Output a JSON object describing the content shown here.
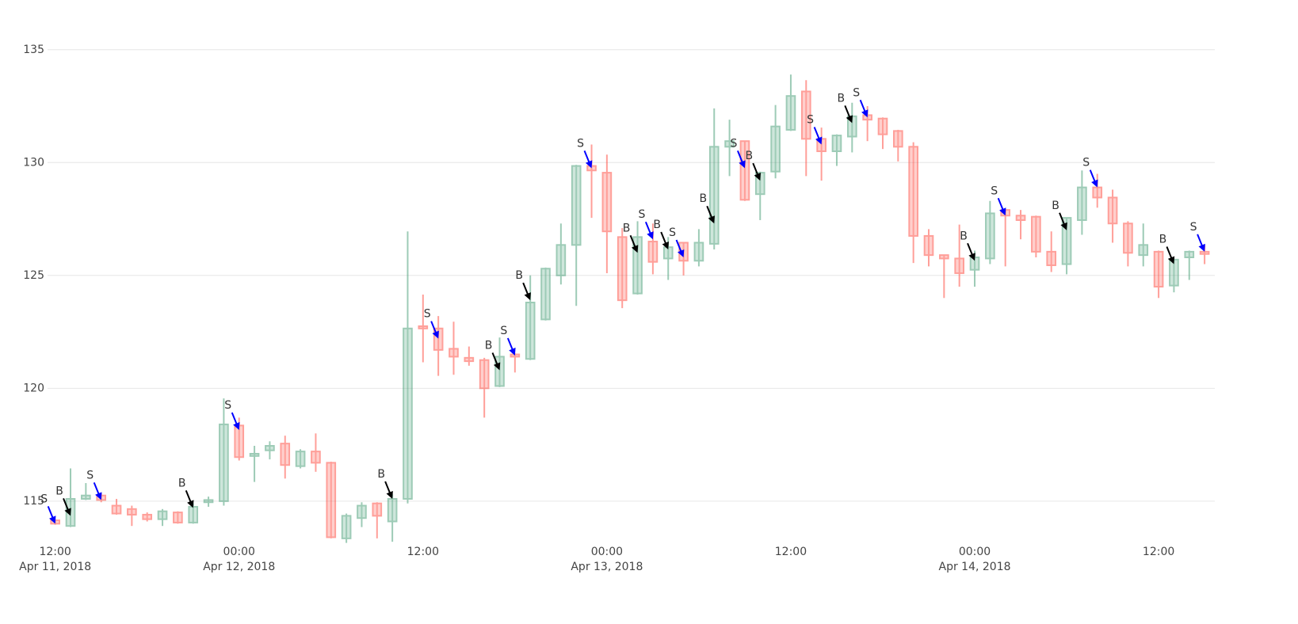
{
  "chart_data": {
    "type": "candlestick",
    "x": [
      "2018-04-11 12:00",
      "2018-04-11 13:00",
      "2018-04-11 14:00",
      "2018-04-11 15:00",
      "2018-04-11 16:00",
      "2018-04-11 17:00",
      "2018-04-11 18:00",
      "2018-04-11 19:00",
      "2018-04-11 20:00",
      "2018-04-11 21:00",
      "2018-04-11 22:00",
      "2018-04-11 23:00",
      "2018-04-12 00:00",
      "2018-04-12 01:00",
      "2018-04-12 02:00",
      "2018-04-12 03:00",
      "2018-04-12 04:00",
      "2018-04-12 05:00",
      "2018-04-12 06:00",
      "2018-04-12 07:00",
      "2018-04-12 08:00",
      "2018-04-12 09:00",
      "2018-04-12 10:00",
      "2018-04-12 11:00",
      "2018-04-12 12:00",
      "2018-04-12 13:00",
      "2018-04-12 14:00",
      "2018-04-12 15:00",
      "2018-04-12 16:00",
      "2018-04-12 17:00",
      "2018-04-12 18:00",
      "2018-04-12 19:00",
      "2018-04-12 20:00",
      "2018-04-12 21:00",
      "2018-04-12 22:00",
      "2018-04-12 23:00",
      "2018-04-13 00:00",
      "2018-04-13 01:00",
      "2018-04-13 02:00",
      "2018-04-13 03:00",
      "2018-04-13 04:00",
      "2018-04-13 05:00",
      "2018-04-13 06:00",
      "2018-04-13 07:00",
      "2018-04-13 08:00",
      "2018-04-13 09:00",
      "2018-04-13 10:00",
      "2018-04-13 11:00",
      "2018-04-13 12:00",
      "2018-04-13 13:00",
      "2018-04-13 14:00",
      "2018-04-13 15:00",
      "2018-04-13 16:00",
      "2018-04-13 17:00",
      "2018-04-13 18:00",
      "2018-04-13 19:00",
      "2018-04-13 20:00",
      "2018-04-13 21:00",
      "2018-04-13 22:00",
      "2018-04-13 23:00",
      "2018-04-14 00:00",
      "2018-04-14 01:00",
      "2018-04-14 02:00",
      "2018-04-14 03:00",
      "2018-04-14 04:00",
      "2018-04-14 05:00",
      "2018-04-14 06:00",
      "2018-04-14 07:00",
      "2018-04-14 08:00",
      "2018-04-14 09:00",
      "2018-04-14 10:00",
      "2018-04-14 11:00",
      "2018-04-14 12:00",
      "2018-04-14 13:00",
      "2018-04-14 14:00",
      "2018-04-14 15:00"
    ],
    "open": [
      114.15,
      113.9,
      115.1,
      115.25,
      114.8,
      114.65,
      114.4,
      114.2,
      114.5,
      114.05,
      114.95,
      115.0,
      118.35,
      117.0,
      117.25,
      117.55,
      116.55,
      117.2,
      116.7,
      113.35,
      114.25,
      114.9,
      114.1,
      115.1,
      122.75,
      122.65,
      121.75,
      121.35,
      121.25,
      120.1,
      121.5,
      121.3,
      123.05,
      125.0,
      126.35,
      129.85,
      129.55,
      126.7,
      124.2,
      126.5,
      125.75,
      126.45,
      125.65,
      126.4,
      130.7,
      130.95,
      128.6,
      129.6,
      131.45,
      133.15,
      131.05,
      130.5,
      131.15,
      132.1,
      131.95,
      131.4,
      130.7,
      126.75,
      125.9,
      125.75,
      125.25,
      125.75,
      127.9,
      127.65,
      127.6,
      126.05,
      125.5,
      127.45,
      128.9,
      128.45,
      127.3,
      125.9,
      126.05,
      124.55,
      125.8,
      126.05
    ],
    "high": [
      114.2,
      116.45,
      115.8,
      115.35,
      115.1,
      114.8,
      114.5,
      114.65,
      114.55,
      114.9,
      115.2,
      119.55,
      118.7,
      117.45,
      117.65,
      117.9,
      117.3,
      118.0,
      116.75,
      114.45,
      114.95,
      114.95,
      115.3,
      126.95,
      124.15,
      123.2,
      122.95,
      121.85,
      121.35,
      122.25,
      121.55,
      125.0,
      125.35,
      127.3,
      129.9,
      130.8,
      130.35,
      127.1,
      127.4,
      127.3,
      126.7,
      126.45,
      127.05,
      132.4,
      131.9,
      130.95,
      129.6,
      132.55,
      133.9,
      133.65,
      131.55,
      131.25,
      132.65,
      132.5,
      132.0,
      131.45,
      130.9,
      127.05,
      125.9,
      127.25,
      126.1,
      128.3,
      127.9,
      127.9,
      127.65,
      126.95,
      127.55,
      129.65,
      129.5,
      128.8,
      127.4,
      127.3,
      126.1,
      125.75,
      126.1,
      126.35
    ],
    "low": [
      113.95,
      113.85,
      115.05,
      114.95,
      114.4,
      113.9,
      114.1,
      113.9,
      114.0,
      114.0,
      114.75,
      114.8,
      116.8,
      115.85,
      116.85,
      116.0,
      116.45,
      116.3,
      113.35,
      113.15,
      113.85,
      113.35,
      113.2,
      114.9,
      121.15,
      120.55,
      120.6,
      121.0,
      118.7,
      120.05,
      120.7,
      121.25,
      123.0,
      124.6,
      123.65,
      127.55,
      125.1,
      123.55,
      124.15,
      125.05,
      124.8,
      125.0,
      125.4,
      126.15,
      129.4,
      128.3,
      127.45,
      129.3,
      131.4,
      129.4,
      129.2,
      129.85,
      130.45,
      130.95,
      130.6,
      130.05,
      125.55,
      125.4,
      124.0,
      124.5,
      124.5,
      125.5,
      125.4,
      126.6,
      125.8,
      125.15,
      125.05,
      126.8,
      128.0,
      126.45,
      125.4,
      125.4,
      124.0,
      124.25,
      124.8,
      125.5
    ],
    "close": [
      114.0,
      115.1,
      115.25,
      115.05,
      114.45,
      114.4,
      114.2,
      114.55,
      114.05,
      114.75,
      115.05,
      118.4,
      116.95,
      117.1,
      117.45,
      116.6,
      117.2,
      116.7,
      113.4,
      114.35,
      114.8,
      114.35,
      115.1,
      122.65,
      122.65,
      121.7,
      121.4,
      121.2,
      120.0,
      121.4,
      121.4,
      123.8,
      125.3,
      126.35,
      129.85,
      129.65,
      126.95,
      123.9,
      126.7,
      125.6,
      126.25,
      125.65,
      126.45,
      130.7,
      130.95,
      128.35,
      129.55,
      131.6,
      132.95,
      131.05,
      130.5,
      131.2,
      132.05,
      131.9,
      131.25,
      130.7,
      126.75,
      125.9,
      125.75,
      125.1,
      125.8,
      127.75,
      127.65,
      127.45,
      126.05,
      125.45,
      127.55,
      128.9,
      128.45,
      127.3,
      126.0,
      126.35,
      124.5,
      125.7,
      126.05,
      125.95
    ],
    "increasing_color": "#3D9970",
    "decreasing_color": "#FF4136",
    "opacity": 0.5,
    "xlim": [
      "2018-04-11 11:30",
      "2018-04-14 15:40"
    ],
    "ylim": [
      113.1,
      136.5
    ],
    "yticks": [
      115,
      120,
      125,
      130,
      135
    ],
    "xticks": [
      {
        "value": "2018-04-11 12:00",
        "label": "12:00",
        "date": "Apr 11, 2018"
      },
      {
        "value": "2018-04-12 00:00",
        "label": "00:00",
        "date": "Apr 12, 2018"
      },
      {
        "value": "2018-04-12 12:00",
        "label": "12:00"
      },
      {
        "value": "2018-04-13 00:00",
        "label": "00:00",
        "date": "Apr 13, 2018"
      },
      {
        "value": "2018-04-13 12:00",
        "label": "12:00"
      },
      {
        "value": "2018-04-14 00:00",
        "label": "00:00",
        "date": "Apr 14, 2018"
      },
      {
        "value": "2018-04-14 12:00",
        "label": "12:00"
      }
    ],
    "grid": true,
    "annotations": [
      {
        "x": "2018-04-11 12:00",
        "y": 114.0,
        "text": "S",
        "color": "#0000ff"
      },
      {
        "x": "2018-04-11 13:00",
        "y": 114.35,
        "text": "B",
        "color": "#000000"
      },
      {
        "x": "2018-04-11 15:00",
        "y": 115.05,
        "text": "S",
        "color": "#0000ff"
      },
      {
        "x": "2018-04-11 21:00",
        "y": 114.7,
        "text": "B",
        "color": "#000000"
      },
      {
        "x": "2018-04-12 00:00",
        "y": 118.15,
        "text": "S",
        "color": "#0000ff"
      },
      {
        "x": "2018-04-12 10:00",
        "y": 115.1,
        "text": "B",
        "color": "#000000"
      },
      {
        "x": "2018-04-12 13:00",
        "y": 122.2,
        "text": "S",
        "color": "#0000ff"
      },
      {
        "x": "2018-04-12 17:00",
        "y": 120.8,
        "text": "B",
        "color": "#000000"
      },
      {
        "x": "2018-04-12 18:00",
        "y": 121.45,
        "text": "S",
        "color": "#0000ff"
      },
      {
        "x": "2018-04-12 19:00",
        "y": 123.9,
        "text": "B",
        "color": "#000000"
      },
      {
        "x": "2018-04-12 23:00",
        "y": 129.75,
        "text": "S",
        "color": "#0000ff"
      },
      {
        "x": "2018-04-13 02:00",
        "y": 126.0,
        "text": "B",
        "color": "#000000"
      },
      {
        "x": "2018-04-13 03:00",
        "y": 126.6,
        "text": "S",
        "color": "#0000ff"
      },
      {
        "x": "2018-04-13 04:00",
        "y": 126.15,
        "text": "B",
        "color": "#000000"
      },
      {
        "x": "2018-04-13 05:00",
        "y": 125.8,
        "text": "S",
        "color": "#0000ff"
      },
      {
        "x": "2018-04-13 07:00",
        "y": 127.3,
        "text": "B",
        "color": "#000000"
      },
      {
        "x": "2018-04-13 09:00",
        "y": 129.75,
        "text": "S",
        "color": "#0000ff"
      },
      {
        "x": "2018-04-13 10:00",
        "y": 129.2,
        "text": "B",
        "color": "#000000"
      },
      {
        "x": "2018-04-13 14:00",
        "y": 130.8,
        "text": "S",
        "color": "#0000ff"
      },
      {
        "x": "2018-04-13 16:00",
        "y": 131.75,
        "text": "B",
        "color": "#000000"
      },
      {
        "x": "2018-04-13 17:00",
        "y": 132.0,
        "text": "S",
        "color": "#0000ff"
      },
      {
        "x": "2018-04-14 00:00",
        "y": 125.65,
        "text": "B",
        "color": "#000000"
      },
      {
        "x": "2018-04-14 02:00",
        "y": 127.65,
        "text": "S",
        "color": "#0000ff"
      },
      {
        "x": "2018-04-14 06:00",
        "y": 127.0,
        "text": "B",
        "color": "#000000"
      },
      {
        "x": "2018-04-14 08:00",
        "y": 128.9,
        "text": "S",
        "color": "#0000ff"
      },
      {
        "x": "2018-04-14 13:00",
        "y": 125.5,
        "text": "B",
        "color": "#000000"
      },
      {
        "x": "2018-04-14 15:00",
        "y": 126.05,
        "text": "S",
        "color": "#0000ff"
      }
    ]
  }
}
